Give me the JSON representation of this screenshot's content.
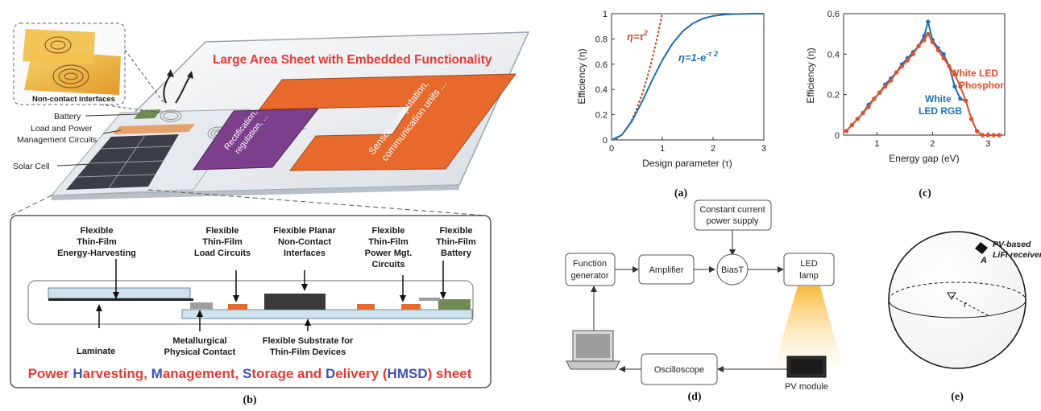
{
  "panel_b": {
    "inset_label": "Non-contact interfaces",
    "sheet_title": "Large Area Sheet with Embedded Functionality",
    "battery": "Battery",
    "load_power_1": "Load and Power",
    "load_power_2": "Management Circuits",
    "solar_cell": "Solar Cell",
    "rect_1": "Rectification,",
    "rect_2": "regulation, ...",
    "sensor_1": "Sensor, computation,",
    "sensor_2": "communication units ...",
    "harvest": [
      "Flexible",
      "Thin-Film",
      "Energy-Harvesting"
    ],
    "load": [
      "Flexible",
      "Thin-Film",
      "Load Circuits"
    ],
    "planar": [
      "Flexible Planar",
      "Non-Contact",
      "Interfaces"
    ],
    "power": [
      "Flexible",
      "Thin-Film",
      "Power Mgt.",
      "Circuits"
    ],
    "battery_film": [
      "Flexible",
      "Thin-Film",
      "Battery"
    ],
    "laminate": "Laminate",
    "metallurgical": [
      "Metallurgical",
      "Physical Contact"
    ],
    "substrate": [
      "Flexible Substrate for",
      "Thin-Film Devices"
    ],
    "footer": {
      "p1": "Power ",
      "h": "H",
      "p2": "arvesting, ",
      "m": "M",
      "p3": "anagement, ",
      "s": "S",
      "p4": "torage and ",
      "d": "D",
      "p5": "elivery (",
      "abbr": "HMSD",
      "p6": ") sheet"
    },
    "caption": "(b)",
    "colors": {
      "red": "#e53935",
      "blue": "#3f51b5",
      "orange": "#e8692c",
      "purple": "#7b3f8c"
    }
  },
  "chart_a": {
    "chart_data": {
      "type": "line",
      "xlabel": "Design parameter (τ)",
      "ylabel": "Efficiency (η)",
      "xlim": [
        0,
        3
      ],
      "ylim": [
        0,
        1
      ],
      "xticks": [
        "0",
        "1",
        "2",
        "3"
      ],
      "yticks": [
        "0",
        "0.2",
        "0.4",
        "0.6",
        "0.8",
        "1"
      ],
      "series": [
        {
          "name": "η=τ²",
          "color": "#c0522a",
          "style": "dashed",
          "x": [
            0,
            0.1,
            0.2,
            0.3,
            0.4,
            0.5,
            0.6,
            0.7,
            0.8,
            0.9,
            1.0
          ],
          "y": [
            0,
            0.01,
            0.04,
            0.09,
            0.16,
            0.25,
            0.36,
            0.49,
            0.64,
            0.81,
            1.0
          ]
        },
        {
          "name": "η=1-e^(-τ²)",
          "color": "#1f6fb5",
          "style": "solid",
          "x": [
            0,
            0.2,
            0.4,
            0.6,
            0.8,
            1.0,
            1.2,
            1.4,
            1.6,
            1.8,
            2.0,
            2.2,
            2.4,
            2.6,
            2.8,
            3.0
          ],
          "y": [
            0,
            0.039,
            0.148,
            0.302,
            0.473,
            0.632,
            0.763,
            0.859,
            0.923,
            0.961,
            0.982,
            0.992,
            0.997,
            0.999,
            1.0,
            1.0
          ]
        }
      ]
    },
    "label_red": "η=τ",
    "label_red_sup": "2",
    "label_blue": "η=1-e",
    "label_blue_sup": "-τ",
    "label_blue_sup2": "2",
    "caption": "(a)"
  },
  "chart_c": {
    "chart_data": {
      "type": "line",
      "xlabel": "Energy gap (eV)",
      "ylabel": "Efficiency (η)",
      "xlim": [
        0.4,
        3.3
      ],
      "ylim": [
        0,
        0.6
      ],
      "xticks": [
        "1",
        "2",
        "3"
      ],
      "yticks": [
        "0",
        "0.2",
        "0.4",
        "0.6"
      ],
      "series": [
        {
          "name": "White LED RGB",
          "color": "#1f6fb5",
          "x": [
            0.45,
            0.55,
            0.65,
            0.75,
            0.85,
            0.95,
            1.05,
            1.15,
            1.25,
            1.35,
            1.45,
            1.55,
            1.65,
            1.75,
            1.85,
            1.92,
            2.0,
            2.1,
            2.2,
            2.3,
            2.4,
            2.5,
            2.6,
            2.7,
            2.8,
            2.9,
            3.0,
            3.1,
            3.2
          ],
          "y": [
            0.02,
            0.05,
            0.08,
            0.11,
            0.15,
            0.18,
            0.21,
            0.25,
            0.28,
            0.31,
            0.35,
            0.38,
            0.41,
            0.44,
            0.49,
            0.56,
            0.47,
            0.43,
            0.4,
            0.34,
            0.24,
            0.18,
            0.17,
            0.08,
            0.02,
            0.0,
            0.0,
            0.0,
            0.0
          ]
        },
        {
          "name": "White LED Phosphor",
          "color": "#e0502d",
          "x": [
            0.45,
            0.55,
            0.65,
            0.75,
            0.85,
            0.95,
            1.05,
            1.15,
            1.25,
            1.35,
            1.45,
            1.55,
            1.65,
            1.75,
            1.85,
            1.92,
            2.0,
            2.1,
            2.2,
            2.3,
            2.4,
            2.5,
            2.6,
            2.7,
            2.8,
            2.9,
            3.0,
            3.1,
            3.2
          ],
          "y": [
            0.02,
            0.05,
            0.08,
            0.11,
            0.14,
            0.18,
            0.21,
            0.24,
            0.27,
            0.31,
            0.34,
            0.37,
            0.4,
            0.44,
            0.47,
            0.5,
            0.46,
            0.42,
            0.38,
            0.34,
            0.3,
            0.24,
            0.17,
            0.08,
            0.02,
            0.0,
            0.0,
            0.0,
            0.0
          ]
        }
      ]
    },
    "legend_phosphor_1": "White LED",
    "legend_phosphor_2": "Phosphor",
    "legend_rgb_1": "White",
    "legend_rgb_2": "LED RGB",
    "caption": "(c)"
  },
  "panel_d": {
    "constant_current_1": "Constant current",
    "constant_current_2": "power supply",
    "function_gen_1": "Function",
    "function_gen_2": "generator",
    "amplifier": "Amplifier",
    "biast": "BiasT",
    "led_1": "LED",
    "led_2": "lamp",
    "oscilloscope": "Oscilloscope",
    "pv_module": "PV module",
    "caption": "(d)"
  },
  "panel_e": {
    "receiver_1": "PV-based",
    "receiver_2": "LiFi receiver",
    "point": "A",
    "radius": "r",
    "caption": "(e)"
  }
}
